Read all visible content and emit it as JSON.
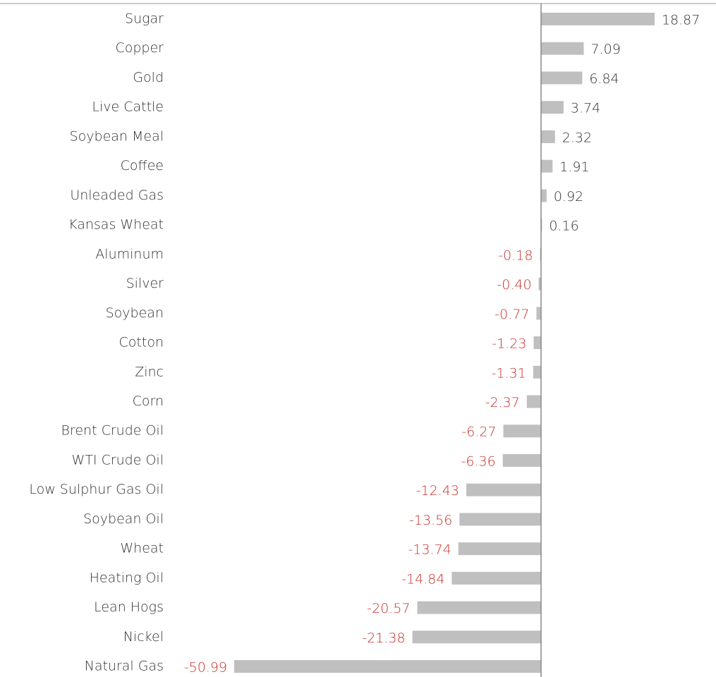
{
  "chart_data": {
    "type": "barh",
    "categories": [
      "Sugar",
      "Copper",
      "Gold",
      "Live Cattle",
      "Soybean Meal",
      "Coffee",
      "Unleaded Gas",
      "Kansas Wheat",
      "Aluminum",
      "Silver",
      "Soybean",
      "Cotton",
      "Zinc",
      "Corn",
      "Brent Crude Oil",
      "WTI Crude Oil",
      "Low Sulphur Gas Oil",
      "Soybean Oil",
      "Wheat",
      "Heating Oil",
      "Lean Hogs",
      "Nickel",
      "Natural Gas"
    ],
    "values": [
      18.87,
      7.09,
      6.84,
      3.74,
      2.32,
      1.91,
      0.92,
      0.16,
      -0.18,
      -0.4,
      -0.77,
      -1.23,
      -1.31,
      -2.37,
      -6.27,
      -6.36,
      -12.43,
      -13.56,
      -13.74,
      -14.84,
      -20.57,
      -21.38,
      -50.99
    ],
    "value_labels": [
      "18.87",
      "7.09",
      "6.84",
      "3.74",
      "2.32",
      "1.91",
      "0.92",
      "0.16",
      "-0.18",
      "-0.40",
      "-0.77",
      "-1.23",
      "-1.31",
      "-2.37",
      "-6.27",
      "-6.36",
      "-12.43",
      "-13.56",
      "-13.74",
      "-14.84",
      "-20.57",
      "-21.38",
      "-50.99"
    ],
    "color": "#bfbfbf",
    "label_color": "#333333",
    "negative_label_color": "#c8302c",
    "xlim": [
      -52,
      29
    ]
  }
}
